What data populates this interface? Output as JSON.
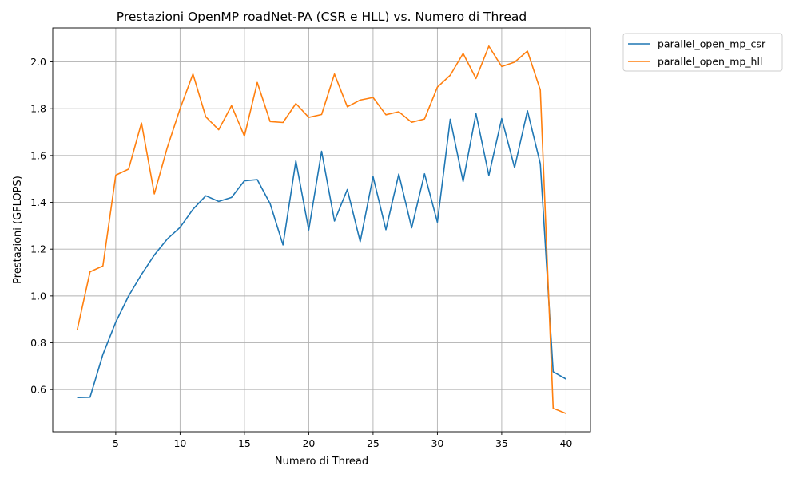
{
  "chart_data": {
    "type": "line",
    "title": "Prestazioni OpenMP roadNet-PA (CSR e HLL) vs. Numero di Thread",
    "xlabel": "Numero di Thread",
    "ylabel": "Prestazioni (GFLOPS)",
    "xlim": [
      0.1,
      41.9
    ],
    "ylim": [
      0.42,
      2.145
    ],
    "xticks": [
      5,
      10,
      15,
      20,
      25,
      30,
      35,
      40
    ],
    "yticks": [
      0.6,
      0.8,
      1.0,
      1.2,
      1.4,
      1.6,
      1.8,
      2.0
    ],
    "xtick_labels": [
      "5",
      "10",
      "15",
      "20",
      "25",
      "30",
      "35",
      "40"
    ],
    "ytick_labels": [
      "0.6",
      "0.8",
      "1.0",
      "1.2",
      "1.4",
      "1.6",
      "1.8",
      "2.0"
    ],
    "grid": true,
    "legend_position": "outside-top-right",
    "x": [
      2,
      3,
      4,
      5,
      6,
      7,
      8,
      9,
      10,
      11,
      12,
      13,
      14,
      15,
      16,
      17,
      18,
      19,
      20,
      21,
      22,
      23,
      24,
      25,
      26,
      27,
      28,
      29,
      30,
      31,
      32,
      33,
      34,
      35,
      36,
      37,
      38,
      39,
      40
    ],
    "series": [
      {
        "name": "parallel_open_mp_csr",
        "color": "#1f77b4",
        "values": [
          0.566,
          0.567,
          0.75,
          0.888,
          1.0,
          1.092,
          1.175,
          1.243,
          1.293,
          1.37,
          1.428,
          1.404,
          1.421,
          1.492,
          1.497,
          1.394,
          1.218,
          1.577,
          1.282,
          1.618,
          1.32,
          1.455,
          1.232,
          1.51,
          1.283,
          1.521,
          1.291,
          1.522,
          1.315,
          1.755,
          1.489,
          1.779,
          1.515,
          1.758,
          1.548,
          1.791,
          1.565,
          0.676,
          0.645
        ]
      },
      {
        "name": "parallel_open_mp_hll",
        "color": "#ff7f0e",
        "values": [
          0.854,
          1.103,
          1.128,
          1.516,
          1.542,
          1.739,
          1.436,
          1.633,
          1.8,
          1.948,
          1.765,
          1.71,
          1.813,
          1.683,
          1.912,
          1.745,
          1.741,
          1.822,
          1.763,
          1.775,
          1.948,
          1.808,
          1.837,
          1.848,
          1.774,
          1.787,
          1.742,
          1.756,
          1.892,
          1.943,
          2.036,
          1.929,
          2.067,
          1.98,
          1.999,
          2.046,
          1.88,
          0.52,
          0.498
        ]
      }
    ]
  }
}
